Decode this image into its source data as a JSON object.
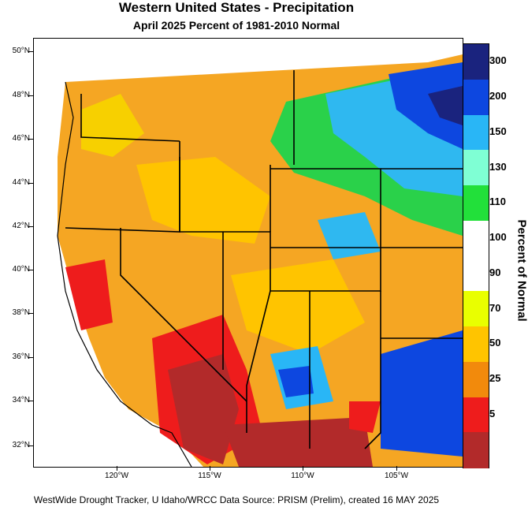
{
  "title": "Western United States - Precipitation",
  "subtitle": "April 2025  Percent of 1981-2010 Normal",
  "footer": "WestWide Drought Tracker, U Idaho/WRCC Data Source: PRISM (Prelim), created 16 MAY 2025",
  "lat_ticks": [
    "50°N",
    "48°N",
    "46°N",
    "44°N",
    "42°N",
    "40°N",
    "38°N",
    "36°N",
    "34°N",
    "32°N"
  ],
  "lon_ticks": [
    "120°W",
    "115°W",
    "110°W",
    "105°W"
  ],
  "legend": {
    "title": "Percent of Normal",
    "bins": [
      {
        "label": "300",
        "color": "#1a237e"
      },
      {
        "label": "200",
        "color": "#0d47e0"
      },
      {
        "label": "150",
        "color": "#29b6f6"
      },
      {
        "label": "130",
        "color": "#7fffd4"
      },
      {
        "label": "110",
        "color": "#22e03a"
      },
      {
        "label": "100",
        "color": "#ffffff"
      },
      {
        "label": "90",
        "color": "#ffffff"
      },
      {
        "label": "70",
        "color": "#e9ff00"
      },
      {
        "label": "50",
        "color": "#ffc400"
      },
      {
        "label": "25",
        "color": "#f28a0c"
      },
      {
        "label": "5",
        "color": "#ee1c1c"
      },
      {
        "label": "",
        "color": "#b22a2a"
      }
    ]
  }
}
